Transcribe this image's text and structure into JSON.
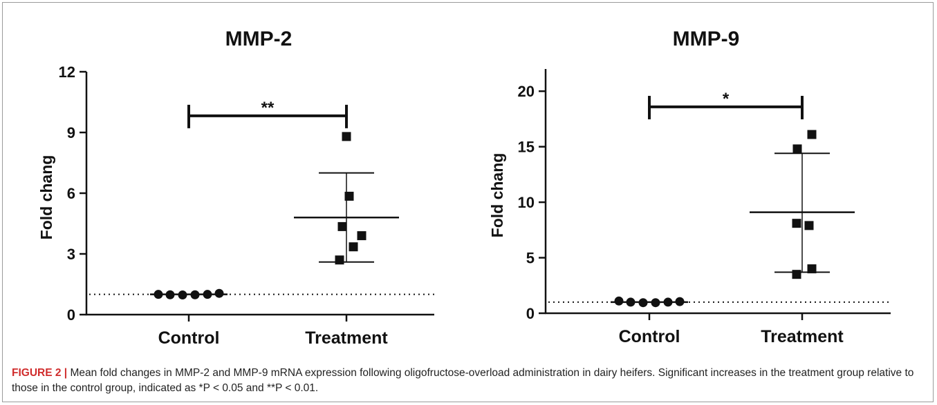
{
  "caption": {
    "label": "FIGURE 2 |",
    "text": "Mean fold changes in MMP-2 and MMP-9 mRNA expression following oligofructose-overload administration in dairy heifers. Significant increases in the treatment group relative to those in the control group, indicated as *P < 0.05 and **P < 0.01."
  },
  "chart_data": [
    {
      "type": "scatter",
      "title": "MMP-2",
      "xlabel": "",
      "ylabel": "Fold chang",
      "categories": [
        "Control",
        "Treatment"
      ],
      "ylim": [
        0,
        12
      ],
      "yticks": [
        0,
        3,
        6,
        9,
        12
      ],
      "baseline": 1,
      "series": [
        {
          "marker": "circle",
          "values": [
            1.0,
            0.98,
            0.97,
            0.98,
            1.0,
            1.05
          ]
        },
        {
          "marker": "square",
          "values": [
            8.8,
            5.85,
            4.35,
            3.9,
            3.35,
            2.7
          ]
        }
      ],
      "summary": [
        {
          "mean": 1.0,
          "upper": 1.05,
          "lower": 0.97
        },
        {
          "mean": 4.8,
          "upper": 7.0,
          "lower": 2.6
        }
      ],
      "significance": "**"
    },
    {
      "type": "scatter",
      "title": "MMP-9",
      "xlabel": "",
      "ylabel": "Fold chang",
      "categories": [
        "Control",
        "Treatment"
      ],
      "ylim": [
        0,
        22
      ],
      "yticks": [
        0,
        5,
        10,
        15,
        20
      ],
      "baseline": 1,
      "series": [
        {
          "marker": "circle",
          "values": [
            1.1,
            1.0,
            0.95,
            0.95,
            1.0,
            1.05
          ]
        },
        {
          "marker": "square",
          "values": [
            16.1,
            14.8,
            8.1,
            7.9,
            4.0,
            3.5
          ]
        }
      ],
      "summary": [
        {
          "mean": 1.0,
          "upper": 1.1,
          "lower": 0.95
        },
        {
          "mean": 9.1,
          "upper": 14.4,
          "lower": 3.7
        }
      ],
      "significance": "*"
    }
  ]
}
